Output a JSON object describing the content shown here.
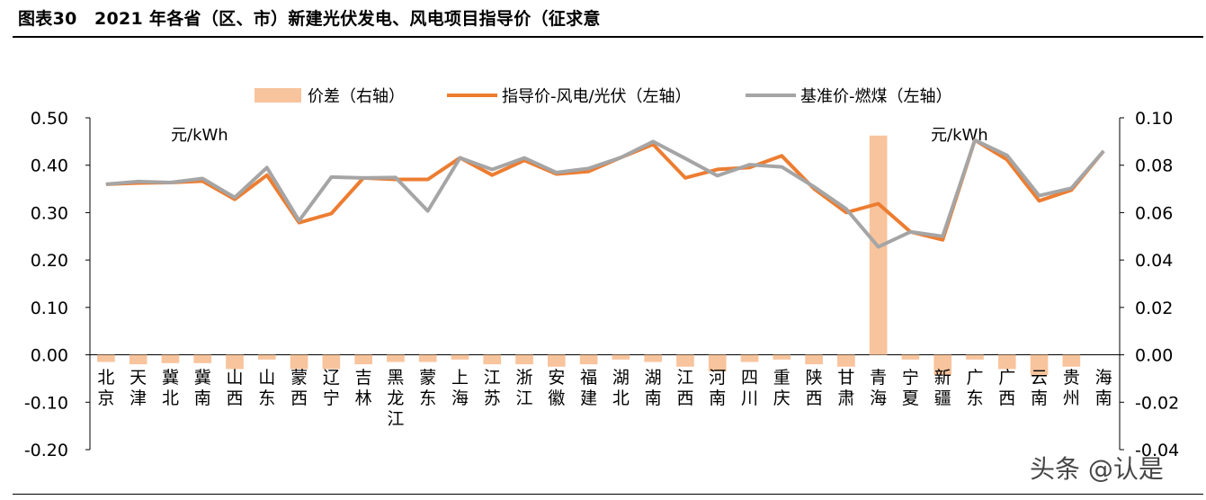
{
  "figure_title": "图表30　2021 年各省（区、市）新建光伏发电、风电项目指导价（征求意",
  "watermark": "头条 @认是",
  "chart_data": {
    "type": "bar+line",
    "categories": [
      "北京",
      "天津",
      "冀北",
      "冀南",
      "山西",
      "山东",
      "蒙西",
      "辽宁",
      "吉林",
      "黑龙江",
      "蒙东",
      "上海",
      "江苏",
      "浙江",
      "安徽",
      "福建",
      "湖北",
      "湖南",
      "江西",
      "河南",
      "四川",
      "重庆",
      "陕西",
      "甘肃",
      "青海",
      "宁夏",
      "新疆",
      "广东",
      "广西",
      "云南",
      "贵州",
      "海南"
    ],
    "series": [
      {
        "name": "价差（右轴）",
        "type": "bar",
        "axis": "right",
        "color": "#F8C49D",
        "values": [
          -0.003,
          -0.004,
          -0.0035,
          -0.0035,
          -0.006,
          -0.002,
          -0.006,
          -0.006,
          -0.004,
          -0.003,
          -0.003,
          -0.002,
          -0.004,
          -0.004,
          -0.005,
          -0.004,
          -0.002,
          -0.003,
          -0.005,
          -0.007,
          -0.003,
          -0.002,
          -0.004,
          -0.005,
          0.0925,
          -0.002,
          -0.0085,
          -0.002,
          -0.006,
          -0.0085,
          -0.005,
          0
        ]
      },
      {
        "name": "指导价-风电/光伏（左轴）",
        "type": "line",
        "axis": "left",
        "color": "#ED7D31",
        "values": [
          0.3598,
          0.3624,
          0.3634,
          0.3664,
          0.3282,
          0.3789,
          0.2788,
          0.2979,
          0.3731,
          0.37,
          0.37,
          0.4155,
          0.3791,
          0.4102,
          0.3814,
          0.387,
          0.4161,
          0.444,
          0.3733,
          0.3911,
          0.3952,
          0.4197,
          0.3504,
          0.3003,
          0.3188,
          0.2595,
          0.2425,
          0.453,
          0.4116,
          0.325,
          0.3475,
          0.4298
        ]
      },
      {
        "name": "基准价-燃煤（左轴）",
        "type": "line",
        "axis": "left",
        "color": "#A5A5A5",
        "values": [
          0.3598,
          0.3655,
          0.3634,
          0.372,
          0.332,
          0.3949,
          0.2829,
          0.3749,
          0.3731,
          0.374,
          0.3035,
          0.4155,
          0.391,
          0.4153,
          0.3844,
          0.3932,
          0.4161,
          0.45,
          0.4143,
          0.3779,
          0.4012,
          0.3964,
          0.3545,
          0.3078,
          0.2277,
          0.2595,
          0.25,
          0.453,
          0.4207,
          0.3358,
          0.3515,
          0.4298
        ]
      }
    ],
    "y_left": {
      "min": -0.2,
      "max": 0.5,
      "ticks": [
        "-0.20",
        "-0.10",
        "0.00",
        "0.10",
        "0.20",
        "0.30",
        "0.40",
        "0.50"
      ],
      "unit": "元/kWh"
    },
    "y_right": {
      "min": -0.04,
      "max": 0.1,
      "ticks": [
        "-0.04",
        "-0.02",
        "0.00",
        "0.02",
        "0.04",
        "0.06",
        "0.08",
        "0.10"
      ],
      "unit": "元/kWh"
    },
    "legend": {
      "placement": "top"
    }
  }
}
